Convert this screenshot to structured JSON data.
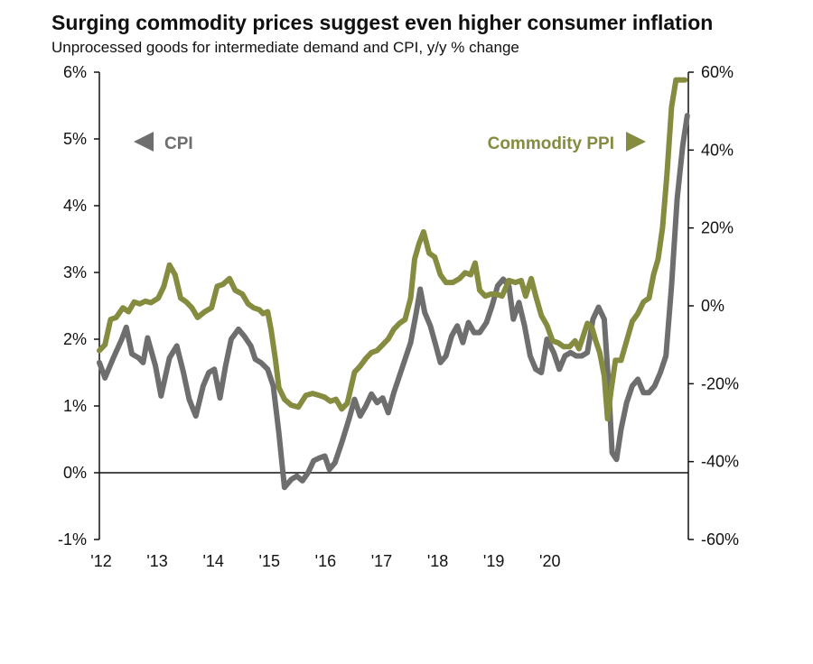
{
  "chart_data": {
    "type": "line",
    "title": "Surging commodity prices suggest even higher consumer inflation",
    "subtitle": "Unprocessed goods for intermediate demand and CPI, y/y % change",
    "x_ticks": [
      "'12",
      "'13",
      "'14",
      "'15",
      "'16",
      "'17",
      "'18",
      "'19",
      "'20"
    ],
    "y_left": {
      "ticks": [
        "-1%",
        "0%",
        "1%",
        "2%",
        "3%",
        "4%",
        "5%",
        "6%"
      ],
      "ylim": [
        -1,
        6
      ]
    },
    "y_right": {
      "ticks": [
        "-60%",
        "-40%",
        "-20%",
        "0%",
        "20%",
        "40%",
        "60%"
      ],
      "ylim": [
        -60,
        60
      ]
    },
    "grid": false,
    "series": [
      {
        "name": "CPI",
        "axis": "left",
        "color": "#6e6e6e",
        "points": [
          [
            2012.0,
            1.65
          ],
          [
            2012.1,
            1.42
          ],
          [
            2012.25,
            1.72
          ],
          [
            2012.4,
            2.0
          ],
          [
            2012.48,
            2.18
          ],
          [
            2012.58,
            1.78
          ],
          [
            2012.7,
            1.72
          ],
          [
            2012.78,
            1.65
          ],
          [
            2012.86,
            2.02
          ],
          [
            2013.0,
            1.6
          ],
          [
            2013.1,
            1.15
          ],
          [
            2013.25,
            1.72
          ],
          [
            2013.38,
            1.9
          ],
          [
            2013.5,
            1.5
          ],
          [
            2013.6,
            1.1
          ],
          [
            2013.72,
            0.85
          ],
          [
            2013.85,
            1.3
          ],
          [
            2013.95,
            1.5
          ],
          [
            2014.05,
            1.55
          ],
          [
            2014.15,
            1.12
          ],
          [
            2014.25,
            1.6
          ],
          [
            2014.35,
            2.0
          ],
          [
            2014.48,
            2.15
          ],
          [
            2014.58,
            2.05
          ],
          [
            2014.7,
            1.9
          ],
          [
            2014.78,
            1.7
          ],
          [
            2014.88,
            1.65
          ],
          [
            2015.0,
            1.55
          ],
          [
            2015.1,
            1.3
          ],
          [
            2015.2,
            0.6
          ],
          [
            2015.3,
            -0.22
          ],
          [
            2015.42,
            -0.1
          ],
          [
            2015.52,
            -0.05
          ],
          [
            2015.62,
            -0.12
          ],
          [
            2015.72,
            0.0
          ],
          [
            2015.82,
            0.18
          ],
          [
            2015.92,
            0.22
          ],
          [
            2016.02,
            0.25
          ],
          [
            2016.1,
            0.05
          ],
          [
            2016.2,
            0.15
          ],
          [
            2016.32,
            0.45
          ],
          [
            2016.45,
            0.8
          ],
          [
            2016.55,
            1.1
          ],
          [
            2016.65,
            0.85
          ],
          [
            2016.75,
            1.0
          ],
          [
            2016.85,
            1.18
          ],
          [
            2016.95,
            1.05
          ],
          [
            2017.05,
            1.12
          ],
          [
            2017.15,
            0.9
          ],
          [
            2017.25,
            1.2
          ],
          [
            2017.35,
            1.45
          ],
          [
            2017.45,
            1.7
          ],
          [
            2017.55,
            1.95
          ],
          [
            2017.65,
            2.4
          ],
          [
            2017.72,
            2.75
          ],
          [
            2017.8,
            2.4
          ],
          [
            2017.9,
            2.2
          ],
          [
            2018.0,
            1.9
          ],
          [
            2018.08,
            1.65
          ],
          [
            2018.18,
            1.75
          ],
          [
            2018.28,
            2.05
          ],
          [
            2018.38,
            2.2
          ],
          [
            2018.48,
            1.95
          ],
          [
            2018.58,
            2.25
          ],
          [
            2018.68,
            2.1
          ],
          [
            2018.78,
            2.1
          ],
          [
            2018.9,
            2.25
          ],
          [
            2019.0,
            2.5
          ],
          [
            2019.1,
            2.8
          ],
          [
            2019.2,
            2.9
          ],
          [
            2019.3,
            2.8
          ],
          [
            2019.38,
            2.3
          ],
          [
            2019.48,
            2.55
          ],
          [
            2019.58,
            2.2
          ],
          [
            2019.68,
            1.75
          ],
          [
            2019.78,
            1.55
          ],
          [
            2019.88,
            1.5
          ],
          [
            2019.98,
            2.0
          ],
          [
            2020.1,
            1.8
          ],
          [
            2020.2,
            1.55
          ],
          [
            2020.3,
            1.75
          ],
          [
            2020.4,
            1.8
          ],
          [
            2020.5,
            1.75
          ],
          [
            2020.6,
            1.75
          ],
          [
            2020.7,
            1.8
          ],
          [
            2020.8,
            2.3
          ],
          [
            2020.9,
            2.48
          ],
          [
            2021.0,
            2.3
          ],
          [
            2021.08,
            1.3
          ],
          [
            2021.14,
            0.3
          ],
          [
            2021.22,
            0.2
          ],
          [
            2021.3,
            0.65
          ],
          [
            2021.4,
            1.05
          ],
          [
            2021.5,
            1.3
          ],
          [
            2021.6,
            1.4
          ],
          [
            2021.7,
            1.2
          ],
          [
            2021.8,
            1.2
          ],
          [
            2021.9,
            1.3
          ],
          [
            2022.0,
            1.5
          ],
          [
            2022.1,
            1.75
          ],
          [
            2022.2,
            2.8
          ],
          [
            2022.3,
            4.1
          ],
          [
            2022.4,
            4.9
          ],
          [
            2022.48,
            5.35
          ]
        ]
      },
      {
        "name": "Commodity PPI",
        "axis": "right",
        "color": "#858b3f",
        "points": [
          [
            2012.0,
            -11.5
          ],
          [
            2012.1,
            -10.0
          ],
          [
            2012.2,
            -3.5
          ],
          [
            2012.3,
            -3.0
          ],
          [
            2012.42,
            -0.5
          ],
          [
            2012.52,
            -1.5
          ],
          [
            2012.62,
            1.0
          ],
          [
            2012.72,
            0.5
          ],
          [
            2012.82,
            1.2
          ],
          [
            2012.92,
            0.8
          ],
          [
            2013.05,
            2.0
          ],
          [
            2013.15,
            5.0
          ],
          [
            2013.25,
            10.5
          ],
          [
            2013.35,
            8.0
          ],
          [
            2013.45,
            2.0
          ],
          [
            2013.55,
            1.0
          ],
          [
            2013.65,
            -0.5
          ],
          [
            2013.75,
            -3.0
          ],
          [
            2013.88,
            -1.5
          ],
          [
            2014.0,
            -0.5
          ],
          [
            2014.1,
            5.0
          ],
          [
            2014.2,
            5.5
          ],
          [
            2014.32,
            7.0
          ],
          [
            2014.42,
            4.0
          ],
          [
            2014.55,
            3.0
          ],
          [
            2014.65,
            0.5
          ],
          [
            2014.75,
            -0.5
          ],
          [
            2014.85,
            -1.0
          ],
          [
            2014.92,
            -2.0
          ],
          [
            2015.0,
            -1.5
          ],
          [
            2015.06,
            -6.0
          ],
          [
            2015.14,
            -14.0
          ],
          [
            2015.2,
            -21.0
          ],
          [
            2015.3,
            -24.0
          ],
          [
            2015.42,
            -25.5
          ],
          [
            2015.55,
            -26.0
          ],
          [
            2015.68,
            -23.0
          ],
          [
            2015.8,
            -22.5
          ],
          [
            2015.92,
            -23.0
          ],
          [
            2016.02,
            -23.5
          ],
          [
            2016.12,
            -24.5
          ],
          [
            2016.22,
            -24.0
          ],
          [
            2016.32,
            -26.5
          ],
          [
            2016.42,
            -25.0
          ],
          [
            2016.55,
            -17.0
          ],
          [
            2016.65,
            -15.5
          ],
          [
            2016.75,
            -13.5
          ],
          [
            2016.85,
            -12.0
          ],
          [
            2016.95,
            -11.5
          ],
          [
            2017.05,
            -10.0
          ],
          [
            2017.15,
            -8.5
          ],
          [
            2017.25,
            -6.0
          ],
          [
            2017.35,
            -4.5
          ],
          [
            2017.45,
            -3.5
          ],
          [
            2017.55,
            2.0
          ],
          [
            2017.62,
            12.0
          ],
          [
            2017.7,
            16.0
          ],
          [
            2017.78,
            19.0
          ],
          [
            2017.88,
            13.5
          ],
          [
            2017.98,
            12.5
          ],
          [
            2018.08,
            8.0
          ],
          [
            2018.18,
            6.0
          ],
          [
            2018.3,
            6.0
          ],
          [
            2018.42,
            7.0
          ],
          [
            2018.52,
            8.5
          ],
          [
            2018.62,
            8.0
          ],
          [
            2018.7,
            11.0
          ],
          [
            2018.78,
            4.0
          ],
          [
            2018.88,
            2.5
          ],
          [
            2018.98,
            3.0
          ],
          [
            2019.08,
            3.0
          ],
          [
            2019.18,
            2.5
          ],
          [
            2019.3,
            6.5
          ],
          [
            2019.42,
            6.0
          ],
          [
            2019.52,
            6.5
          ],
          [
            2019.6,
            2.5
          ],
          [
            2019.7,
            7.0
          ],
          [
            2019.78,
            2.5
          ],
          [
            2019.88,
            -2.5
          ],
          [
            2019.98,
            -5.0
          ],
          [
            2020.08,
            -9.0
          ],
          [
            2020.18,
            -9.5
          ],
          [
            2020.28,
            -10.5
          ],
          [
            2020.38,
            -10.5
          ],
          [
            2020.48,
            -9.0
          ],
          [
            2020.55,
            -11.0
          ],
          [
            2020.62,
            -8.0
          ],
          [
            2020.7,
            -4.5
          ],
          [
            2020.78,
            -5.5
          ],
          [
            2020.85,
            -9.0
          ],
          [
            2020.92,
            -12.0
          ],
          [
            2021.0,
            -18.0
          ],
          [
            2021.06,
            -29.0
          ],
          [
            2021.12,
            -22.0
          ],
          [
            2021.2,
            -14.0
          ],
          [
            2021.3,
            -14.0
          ],
          [
            2021.4,
            -9.0
          ],
          [
            2021.5,
            -4.0
          ],
          [
            2021.6,
            -2.0
          ],
          [
            2021.7,
            1.0
          ],
          [
            2021.8,
            2.0
          ],
          [
            2021.88,
            8.0
          ],
          [
            2021.96,
            12.0
          ],
          [
            2022.04,
            20.0
          ],
          [
            2022.12,
            34.0
          ],
          [
            2022.2,
            51.0
          ],
          [
            2022.28,
            58.0
          ],
          [
            2022.36,
            58.0
          ],
          [
            2022.44,
            58.0
          ]
        ]
      }
    ],
    "annotations": [
      {
        "text": "CPI",
        "arrow": "left",
        "color": "#6e6e6e"
      },
      {
        "text": "Commodity PPI",
        "arrow": "right",
        "color": "#858b3f"
      }
    ]
  }
}
